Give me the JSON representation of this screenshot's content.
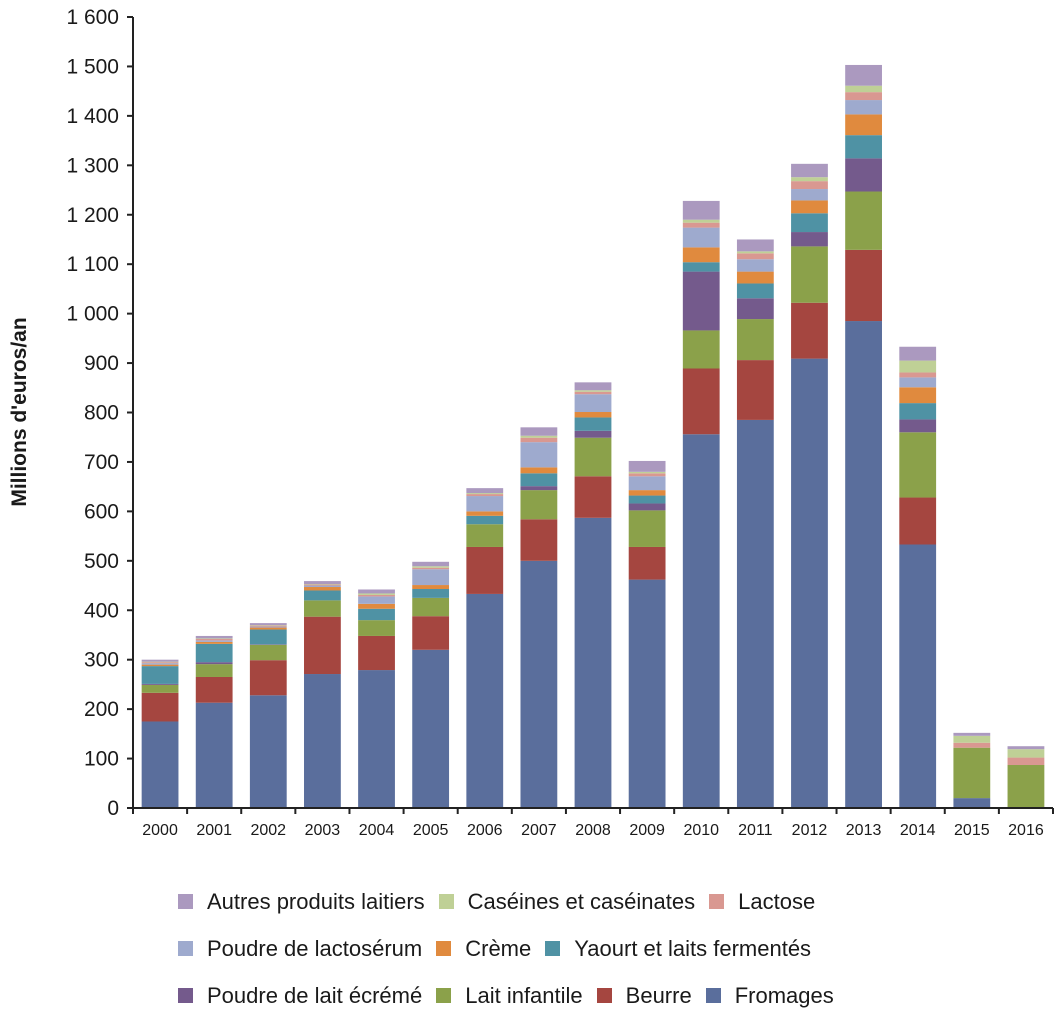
{
  "chart_data": {
    "type": "bar",
    "stacked": true,
    "title": "",
    "xlabel": "",
    "ylabel": "Millions d'euros/an",
    "ylim": [
      0,
      1600
    ],
    "yticks": [
      0,
      100,
      200,
      300,
      400,
      500,
      600,
      700,
      800,
      900,
      1000,
      1100,
      1200,
      1300,
      1400,
      1500,
      1600
    ],
    "ytick_labels": [
      "0",
      "100",
      "200",
      "300",
      "400",
      "500",
      "600",
      "700",
      "800",
      "900",
      "1 000",
      "1 100",
      "1 200",
      "1 300",
      "1 400",
      "1 500",
      "1 600"
    ],
    "grid": false,
    "legend_position": "bottom",
    "categories": [
      "2000",
      "2001",
      "2002",
      "2003",
      "2004",
      "2005",
      "2006",
      "2007",
      "2008",
      "2009",
      "2010",
      "2011",
      "2012",
      "2013",
      "2014",
      "2015",
      "2016"
    ],
    "series": [
      {
        "name": "Fromages",
        "color": "#5a6e9c",
        "values": [
          175,
          213,
          228,
          271,
          279,
          320,
          433,
          500,
          587,
          462,
          756,
          785,
          909,
          985,
          533,
          20,
          0
        ]
      },
      {
        "name": "Beurre",
        "color": "#a54640",
        "values": [
          58,
          52,
          71,
          116,
          69,
          68,
          95,
          84,
          84,
          66,
          133,
          121,
          113,
          144,
          95,
          0,
          0
        ]
      },
      {
        "name": "Lait infantile",
        "color": "#8ba14a",
        "values": [
          16,
          26,
          31,
          33,
          32,
          37,
          46,
          59,
          78,
          74,
          77,
          83,
          114,
          118,
          132,
          102,
          87
        ]
      },
      {
        "name": "Poudre de lait écrémé",
        "color": "#745a8c",
        "values": [
          2,
          4,
          1,
          0,
          0,
          0,
          0,
          8,
          14,
          14,
          119,
          42,
          29,
          67,
          26,
          0,
          0
        ]
      },
      {
        "name": "Yaourt et laits fermentés",
        "color": "#4f92a4",
        "values": [
          36,
          37,
          30,
          20,
          23,
          18,
          17,
          26,
          27,
          16,
          19,
          30,
          38,
          47,
          33,
          0,
          0
        ]
      },
      {
        "name": "Crème",
        "color": "#e08a3e",
        "values": [
          3,
          4,
          4,
          7,
          10,
          8,
          9,
          12,
          11,
          11,
          30,
          24,
          26,
          42,
          32,
          0,
          0
        ]
      },
      {
        "name": "Poudre de lactosérum",
        "color": "#9eaace",
        "values": [
          3,
          3,
          2,
          3,
          15,
          32,
          31,
          51,
          36,
          28,
          40,
          25,
          23,
          29,
          20,
          0,
          0
        ]
      },
      {
        "name": "Lactose",
        "color": "#d99891",
        "values": [
          2,
          3,
          2,
          2,
          3,
          3,
          4,
          9,
          5,
          6,
          10,
          12,
          16,
          16,
          10,
          10,
          15
        ]
      },
      {
        "name": "Caséines et caséinates",
        "color": "#bfd096",
        "values": [
          1,
          1,
          1,
          1,
          3,
          3,
          2,
          4,
          3,
          3,
          6,
          4,
          8,
          13,
          24,
          14,
          17
        ]
      },
      {
        "name": "Autres produits laitiers",
        "color": "#ab99bf",
        "values": [
          4,
          5,
          4,
          6,
          8,
          9,
          10,
          17,
          16,
          22,
          38,
          24,
          27,
          42,
          28,
          6,
          6
        ]
      }
    ],
    "legend_rows": [
      [
        "Autres produits laitiers",
        "Caséines et caséinates",
        "Lactose"
      ],
      [
        "Poudre de lactosérum",
        "Crème",
        "Yaourt et laits fermentés"
      ],
      [
        "Poudre de lait écrémé",
        "Lait infantile",
        "Beurre",
        "Fromages"
      ]
    ]
  }
}
